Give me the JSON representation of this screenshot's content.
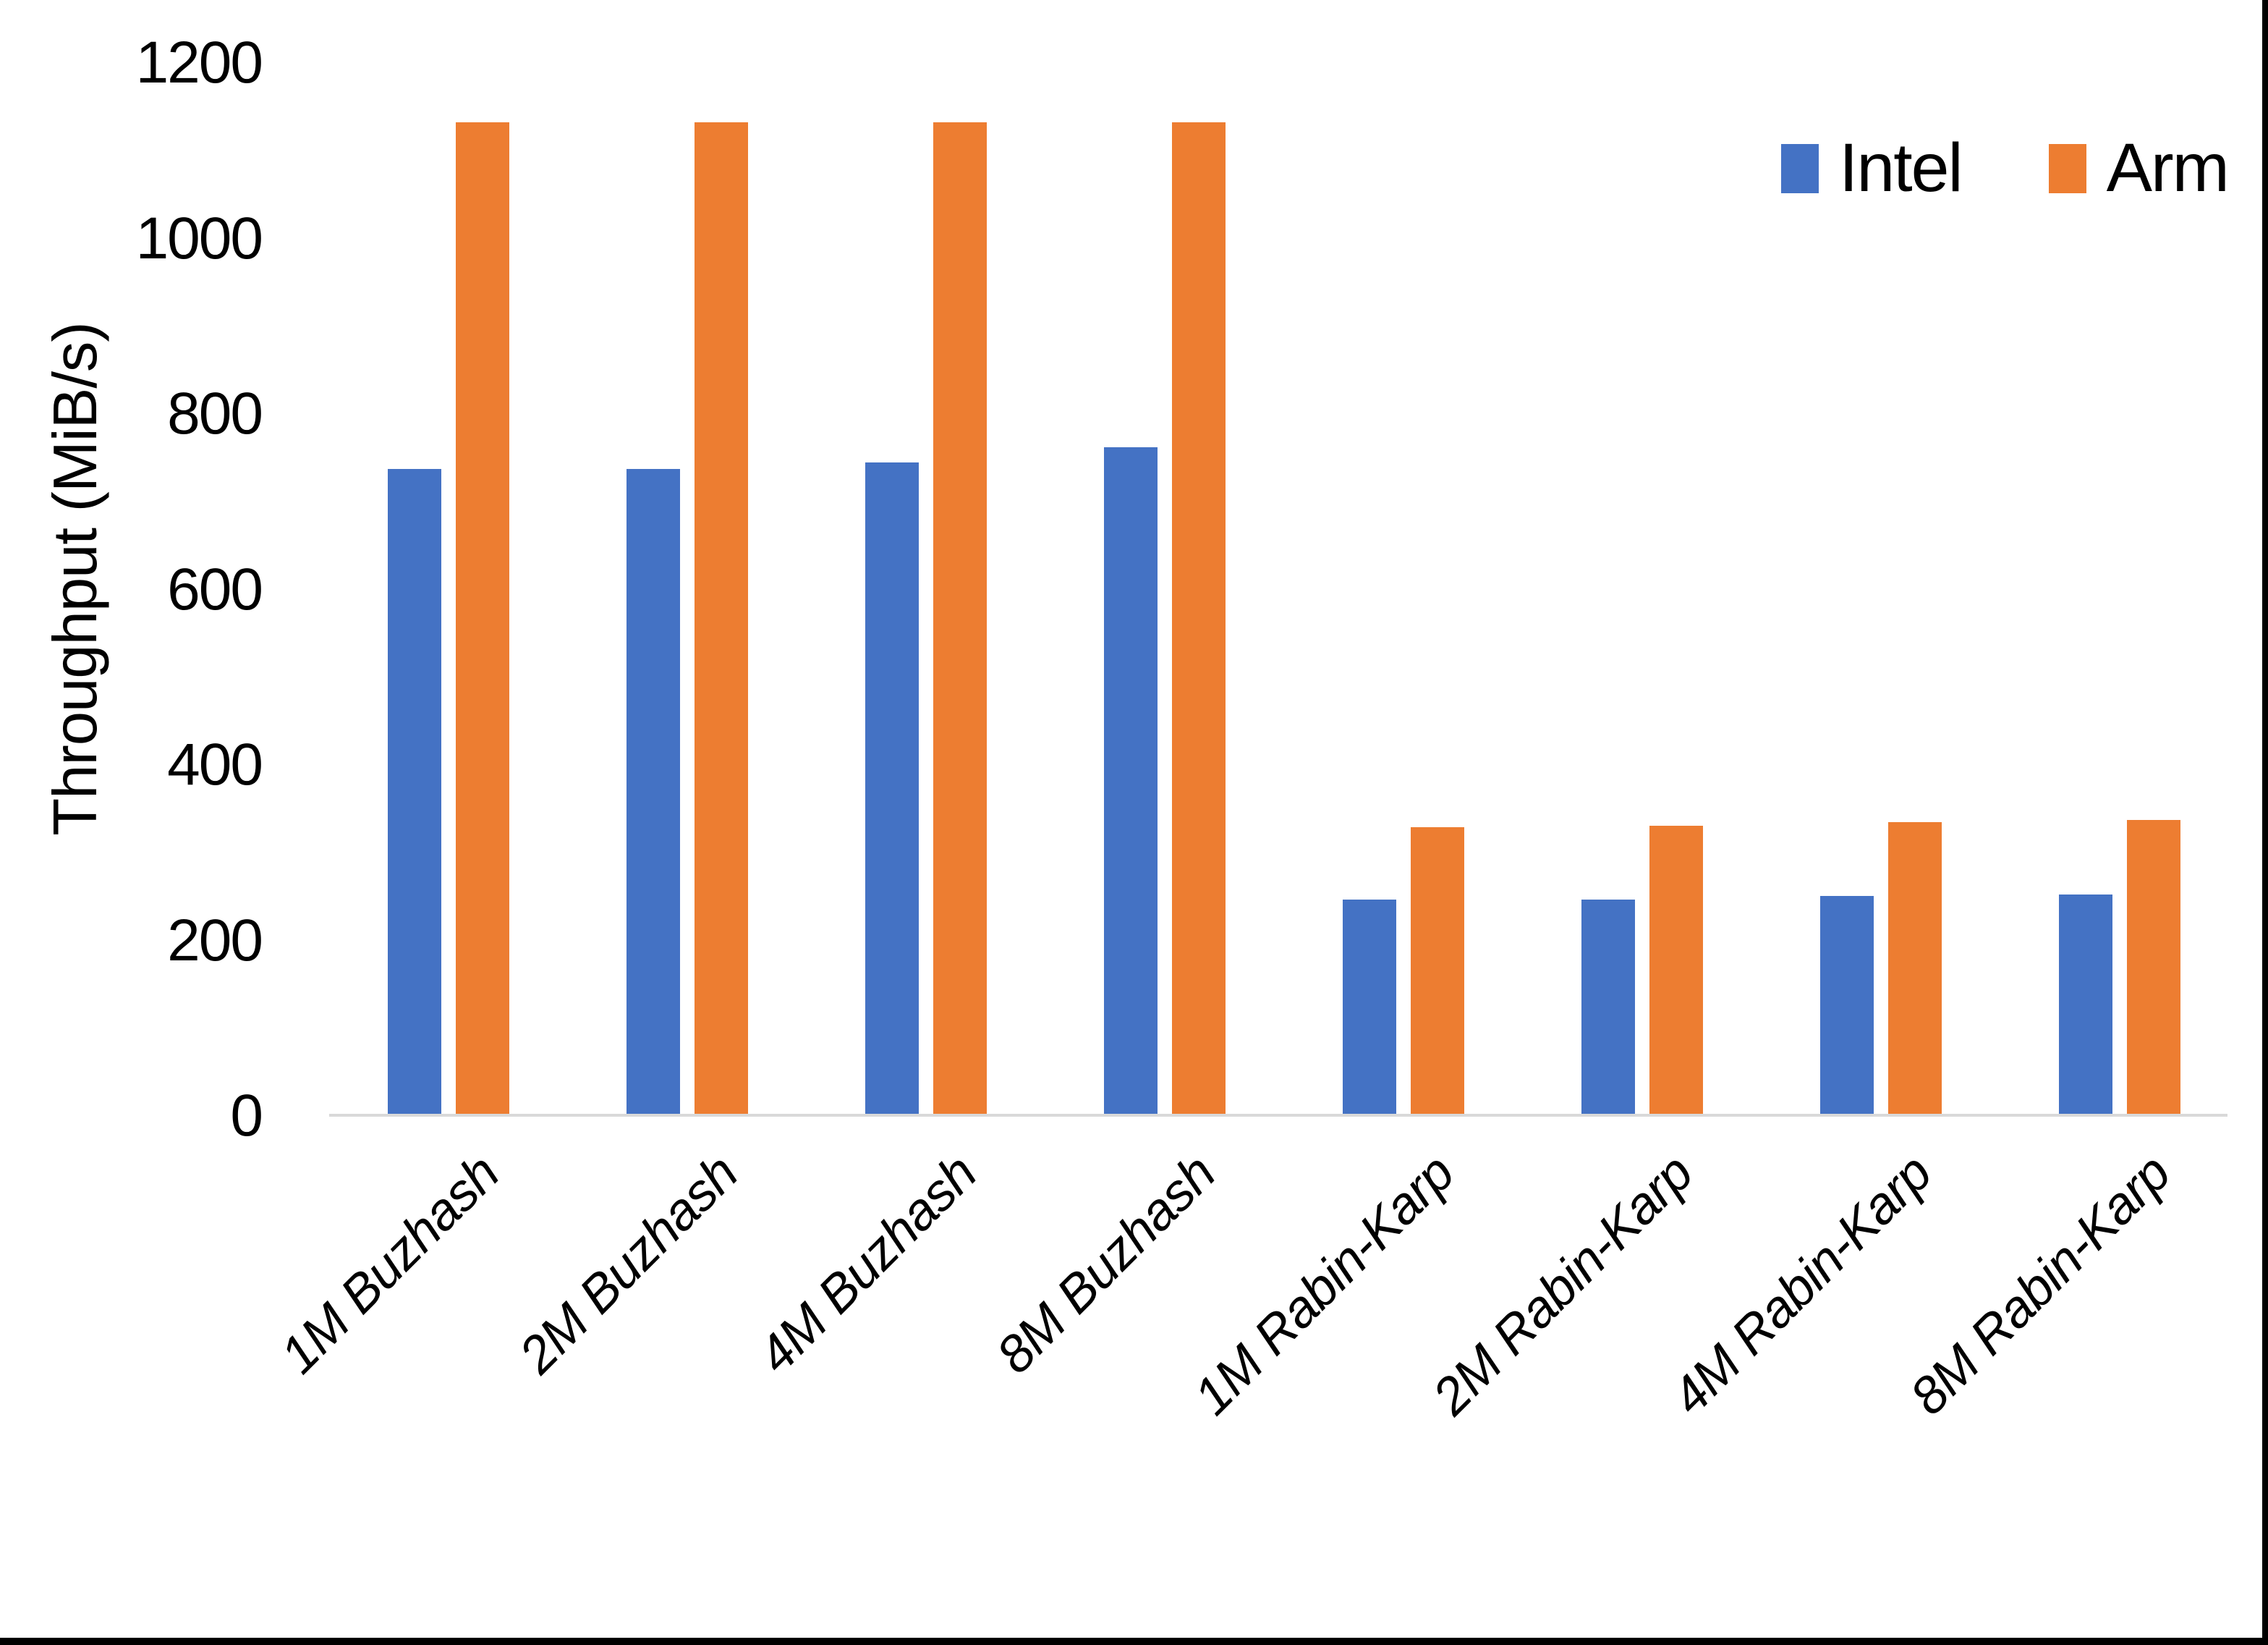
{
  "y_axis": {
    "title": "Throughput (MiB/s)",
    "ticks": [
      0,
      200,
      400,
      600,
      800,
      1000,
      1200
    ],
    "max": 1200,
    "line_color": "#D9D9D9",
    "text_color": "#000000"
  },
  "legend": {
    "position": "top-right",
    "items": [
      {
        "label": "Intel",
        "color": "#4472C4"
      },
      {
        "label": "Arm",
        "color": "#ED7D31"
      }
    ]
  },
  "chart_data": {
    "type": "bar",
    "title": "",
    "xlabel": "",
    "ylabel": "Throughput (MiB/s)",
    "ylim": [
      0,
      1200
    ],
    "grid": false,
    "legend_position": "top-right",
    "categories": [
      "1M Buzhash",
      "2M Buzhash",
      "4M Buzhash",
      "8M Buzhash",
      "1M Rabin-Karp",
      "2M Rabin-Karp",
      "4M Rabin-Karp",
      "8M Rabin-Karp"
    ],
    "series": [
      {
        "name": "Intel",
        "color": "#4472C4",
        "values": [
          737,
          737,
          745,
          762,
          247,
          247,
          251,
          252
        ]
      },
      {
        "name": "Arm",
        "color": "#ED7D31",
        "values": [
          1132,
          1132,
          1132,
          1132,
          329,
          331,
          335,
          337
        ]
      }
    ]
  }
}
